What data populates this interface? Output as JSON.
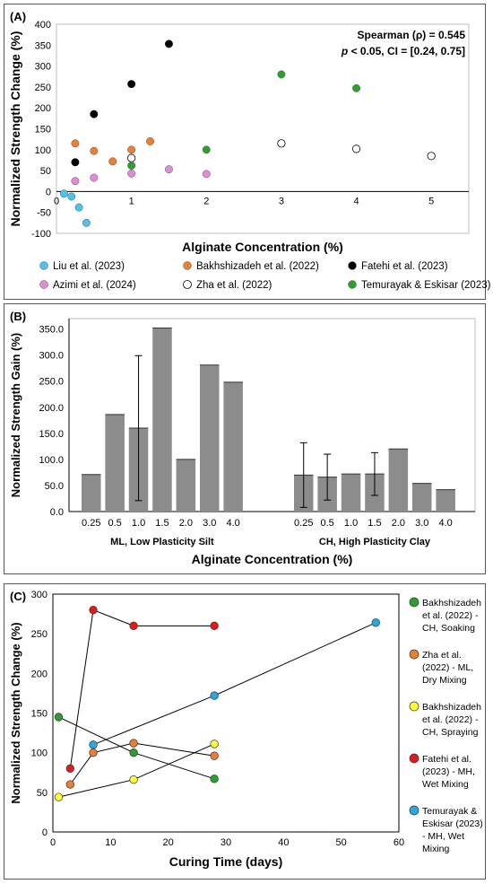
{
  "chart_data": [
    {
      "panel_label": "(A)",
      "type": "scatter",
      "xlabel": "Alginate Concentration (%)",
      "ylabel": "Normalized Strength Change (%)",
      "xlim": [
        0,
        5.5
      ],
      "ylim": [
        -100,
        400
      ],
      "xticks": [
        0,
        1,
        2,
        3,
        4,
        5
      ],
      "yticks": [
        -100,
        -50,
        0,
        50,
        100,
        150,
        200,
        250,
        300,
        350,
        400
      ],
      "annotation_line1": "Spearman (ρ) = 0.545",
      "annotation_p": "p",
      "annotation_line2": " < 0.05, CI = [0.24, 0.75]",
      "legend_position": "bottom",
      "series": [
        {
          "name": "Liu et al. (2023)",
          "color": "#4cc3e8",
          "hollow": false,
          "points": [
            [
              0.1,
              -5
            ],
            [
              0.2,
              -12
            ],
            [
              0.3,
              -38
            ],
            [
              0.4,
              -75
            ]
          ]
        },
        {
          "name": "Bakhshizadeh et al. (2022)",
          "color": "#ed7d31",
          "hollow": false,
          "points": [
            [
              0.25,
              115
            ],
            [
              0.5,
              97
            ],
            [
              0.75,
              72
            ],
            [
              1.0,
              100
            ],
            [
              1.25,
              120
            ]
          ]
        },
        {
          "name": "Fatehi et al. (2023)",
          "color": "#000000",
          "hollow": false,
          "points": [
            [
              0.25,
              70
            ],
            [
              0.5,
              185
            ],
            [
              1.0,
              257
            ],
            [
              1.5,
              353
            ]
          ]
        },
        {
          "name": "Azimi et al. (2024)",
          "color": "#e38ad6",
          "hollow": false,
          "points": [
            [
              0.25,
              25
            ],
            [
              0.5,
              33
            ],
            [
              1.0,
              43
            ],
            [
              1.5,
              53
            ],
            [
              2.0,
              42
            ]
          ]
        },
        {
          "name": "Zha et al. (2022)",
          "color": "#ffffff",
          "hollow": true,
          "points": [
            [
              1.0,
              80
            ],
            [
              3.0,
              115
            ],
            [
              4.0,
              102
            ],
            [
              5.0,
              85
            ]
          ]
        },
        {
          "name": "Temurayak & Eskisar (2023)",
          "color": "#2ca02c",
          "hollow": false,
          "points": [
            [
              1.0,
              62
            ],
            [
              2.0,
              100
            ],
            [
              3.0,
              280
            ],
            [
              4.0,
              247
            ]
          ]
        }
      ]
    },
    {
      "panel_label": "(B)",
      "type": "bar",
      "ylabel": "Normalized Strength Gain (%)",
      "xlabel": "Alginate Concentration (%)",
      "ylim": [
        0,
        370
      ],
      "yticks": [
        "0.0",
        "50.0",
        "100.0",
        "150.0",
        "200.0",
        "250.0",
        "300.0",
        "350.0"
      ],
      "bar_color": "#8c8c8c",
      "groups": [
        {
          "name": "ML, Low Plasticity Silt",
          "categories": [
            "0.25",
            "0.5",
            "1.0",
            "1.5",
            "2.0",
            "3.0",
            "4.0"
          ],
          "values": [
            71,
            186,
            160,
            352,
            100,
            281,
            248
          ],
          "errors": [
            0,
            0,
            139,
            0,
            0,
            0,
            0
          ]
        },
        {
          "name": "CH, High Plasticity Clay",
          "categories": [
            "0.25",
            "0.5",
            "1.0",
            "1.5",
            "2.0",
            "3.0",
            "4.0"
          ],
          "values": [
            70,
            66,
            72,
            72,
            120,
            54,
            42
          ],
          "errors": [
            62,
            44,
            0,
            41,
            0,
            0,
            0
          ]
        }
      ]
    },
    {
      "panel_label": "(C)",
      "type": "line",
      "xlabel": "Curing Time (days)",
      "ylabel": "Normalized  Strength Change (%)",
      "xlim": [
        0,
        60
      ],
      "ylim": [
        0,
        300
      ],
      "xticks": [
        0,
        10,
        20,
        30,
        40,
        50,
        60
      ],
      "yticks": [
        0,
        50,
        100,
        150,
        200,
        250,
        300
      ],
      "legend_position": "right",
      "series": [
        {
          "name": "Bakhshizadeh et al. (2022) - CH, Soaking",
          "legend_lines": [
            "Bakhshizadeh",
            "et al. (2022) -",
            "CH, Soaking"
          ],
          "color": "#2ca02c",
          "points": [
            [
              1,
              145
            ],
            [
              14,
              100
            ],
            [
              28,
              67
            ]
          ]
        },
        {
          "name": "Zha et al. (2022) - ML, Dry Mixing",
          "legend_lines": [
            "Zha et al.",
            "(2022) - ML,",
            "Dry Mixing"
          ],
          "color": "#ed7d31",
          "points": [
            [
              3,
              60
            ],
            [
              7,
              100
            ],
            [
              14,
              112
            ],
            [
              28,
              96
            ]
          ]
        },
        {
          "name": "Bakhshizadeh et al. (2022) - CH, Spraying",
          "legend_lines": [
            "Bakhshizadeh",
            "et al. (2022) -",
            "CH, Spraying"
          ],
          "color": "#ffff33",
          "points": [
            [
              1,
              44
            ],
            [
              14,
              66
            ],
            [
              28,
              111
            ]
          ]
        },
        {
          "name": "Fatehi et al. (2023) - MH, Wet Mixing",
          "legend_lines": [
            "Fatehi et al.",
            "(2023) - MH,",
            "Wet Mixing"
          ],
          "color": "#e31a1c",
          "points": [
            [
              3,
              80
            ],
            [
              7,
              280
            ],
            [
              14,
              260
            ],
            [
              28,
              260
            ]
          ]
        },
        {
          "name": "Temurayak & Eskisar (2023) - MH, Wet Mixing",
          "legend_lines": [
            "Temurayak &",
            "Eskisar (2023)",
            "- MH, Wet",
            "Mixing"
          ],
          "color": "#29a8e0",
          "points": [
            [
              7,
              110
            ],
            [
              28,
              172
            ],
            [
              56,
              264
            ]
          ]
        }
      ]
    }
  ]
}
